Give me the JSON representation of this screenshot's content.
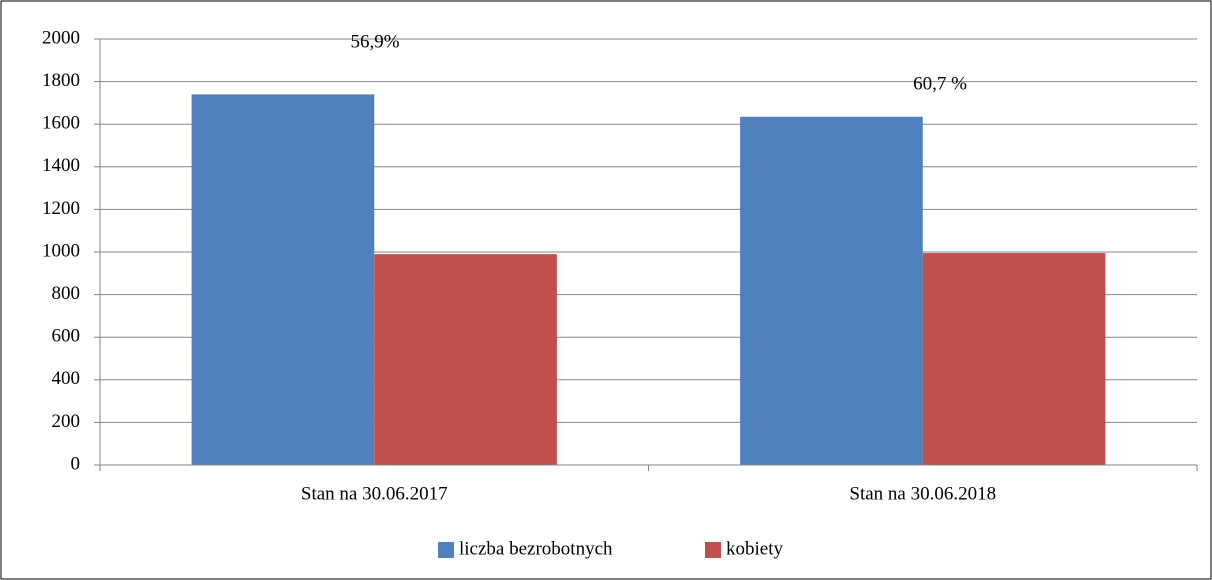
{
  "chart_data": {
    "type": "bar",
    "categories": [
      "Stan na 30.06.2017",
      "Stan na 30.06.2018"
    ],
    "series": [
      {
        "name": "liczba bezrobotnych",
        "color": "#4f81bd",
        "values": [
          1740,
          1635
        ]
      },
      {
        "name": "kobiety",
        "color": "#c0504d",
        "values": [
          990,
          995
        ]
      }
    ],
    "annotations": [
      "56,9%",
      "60,7 %"
    ],
    "ylim": [
      0,
      2000
    ],
    "yticks": [
      0,
      200,
      400,
      600,
      800,
      1000,
      1200,
      1400,
      1600,
      1800,
      2000
    ],
    "grid": true,
    "legend": "bottom"
  }
}
